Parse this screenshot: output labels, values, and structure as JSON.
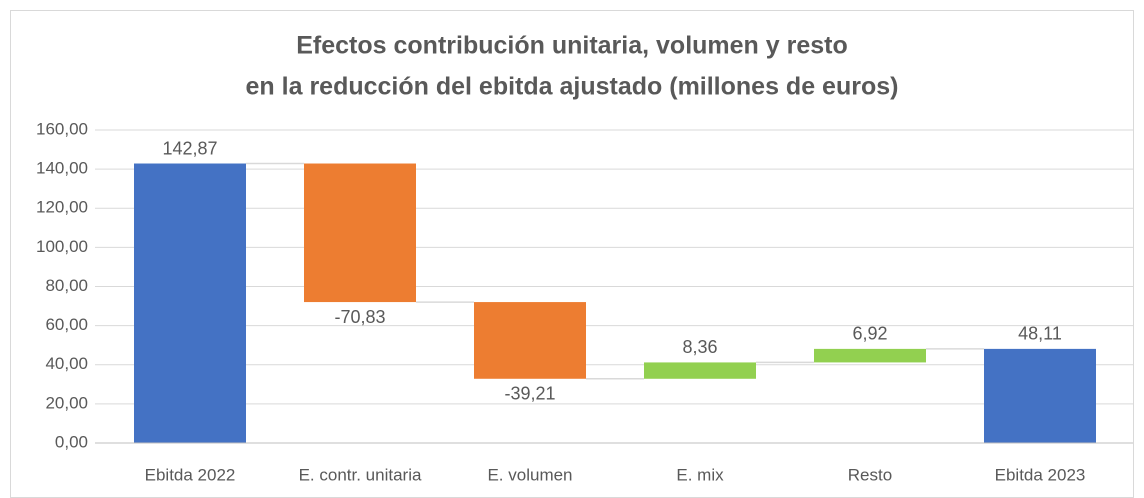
{
  "chart_data": {
    "type": "waterfall",
    "title": [
      "Efectos contribución unitaria, volumen y resto",
      "en la reducción del ebitda ajustado (millones de euros)"
    ],
    "categories": [
      "Ebitda 2022",
      "E. contr. unitaria",
      "E. volumen",
      "E. mix",
      "Resto",
      "Ebitda 2023"
    ],
    "values": [
      142.87,
      -70.83,
      -39.21,
      8.36,
      6.92,
      48.11
    ],
    "value_labels": [
      "142,87",
      "-70,83",
      "-39,21",
      "8,36",
      "6,92",
      "48,11"
    ],
    "measure": [
      "absolute",
      "relative",
      "relative",
      "relative",
      "relative",
      "absolute"
    ],
    "colors": {
      "total": "#4472c4",
      "decrease": "#ed7d31",
      "increase": "#92d050"
    },
    "ylim": [
      0,
      160
    ],
    "yticks": [
      {
        "value": 0,
        "label": "0,00"
      },
      {
        "value": 20,
        "label": "20,00"
      },
      {
        "value": 40,
        "label": "40,00"
      },
      {
        "value": 60,
        "label": "60,00"
      },
      {
        "value": 80,
        "label": "80,00"
      },
      {
        "value": 100,
        "label": "100,00"
      },
      {
        "value": 120,
        "label": "120,00"
      },
      {
        "value": 140,
        "label": "140,00"
      },
      {
        "value": 160,
        "label": "160,00"
      }
    ],
    "grid": true
  }
}
